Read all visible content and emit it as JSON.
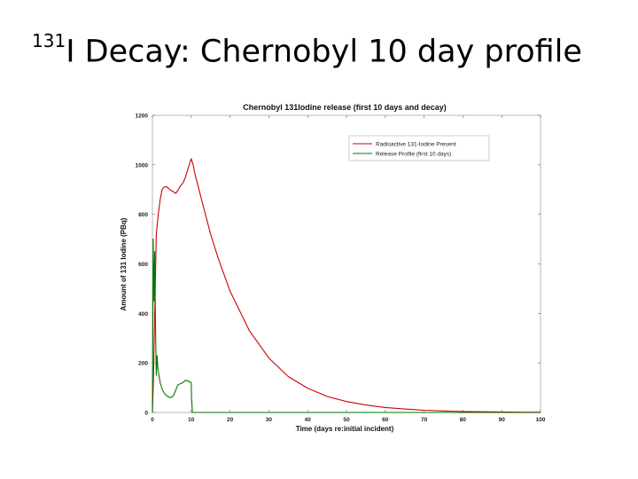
{
  "slide": {
    "title_superscript": "131",
    "title_text": "I Decay: Chernobyl 10 day profile"
  },
  "chart_data": {
    "type": "line",
    "title": "Chernobyl 131Iodine release (first 10 days and decay)",
    "xlabel": "Time (days re:initial incident)",
    "ylabel": "Amount of 131 Iodine (PBq)",
    "xlim": [
      0,
      100
    ],
    "ylim": [
      0,
      1200
    ],
    "x_ticks": [
      0,
      10,
      20,
      30,
      40,
      50,
      60,
      70,
      80,
      90,
      100
    ],
    "y_ticks": [
      0,
      200,
      400,
      600,
      800,
      1000,
      1200
    ],
    "grid": false,
    "legend_position": "top-right",
    "series": [
      {
        "name": "Radioactive 131-Iodine Present",
        "color": "#cc0000",
        "x": [
          0,
          0.3,
          0.6,
          1,
          1.5,
          2,
          2.5,
          3,
          3.5,
          4,
          4.5,
          5,
          5.5,
          6,
          6.5,
          7,
          7.5,
          8,
          8.5,
          9,
          9.5,
          10,
          10.5,
          11,
          12,
          13,
          14,
          15,
          17,
          20,
          25,
          30,
          35,
          40,
          45,
          50,
          55,
          60,
          65,
          70,
          75,
          80,
          85,
          90,
          95,
          100
        ],
        "values": [
          0,
          150,
          400,
          720,
          800,
          860,
          900,
          910,
          912,
          908,
          900,
          895,
          890,
          885,
          895,
          910,
          920,
          930,
          950,
          975,
          1000,
          1025,
          1000,
          960,
          900,
          840,
          780,
          720,
          620,
          490,
          330,
          220,
          145,
          98,
          65,
          44,
          30,
          20,
          14,
          9,
          6,
          4,
          3,
          2,
          1,
          1
        ]
      },
      {
        "name": "Release Profile (first 10 days)",
        "color": "#007700",
        "x": [
          0,
          0.2,
          0.4,
          0.6,
          0.8,
          1,
          1.2,
          1.4,
          1.7,
          2,
          2.5,
          3,
          3.5,
          4,
          4.5,
          5,
          5.5,
          6,
          6.5,
          7,
          7.5,
          8,
          8.5,
          9,
          9.5,
          10,
          10.1,
          10.3,
          11,
          15,
          20,
          30,
          40,
          50,
          60,
          70,
          80,
          90,
          100
        ],
        "values": [
          0,
          700,
          450,
          650,
          350,
          150,
          230,
          180,
          150,
          120,
          95,
          80,
          70,
          65,
          60,
          62,
          70,
          90,
          110,
          115,
          118,
          122,
          130,
          128,
          125,
          120,
          60,
          0,
          0,
          0,
          0,
          0,
          0,
          0,
          0,
          0,
          0,
          0,
          0
        ]
      }
    ]
  }
}
